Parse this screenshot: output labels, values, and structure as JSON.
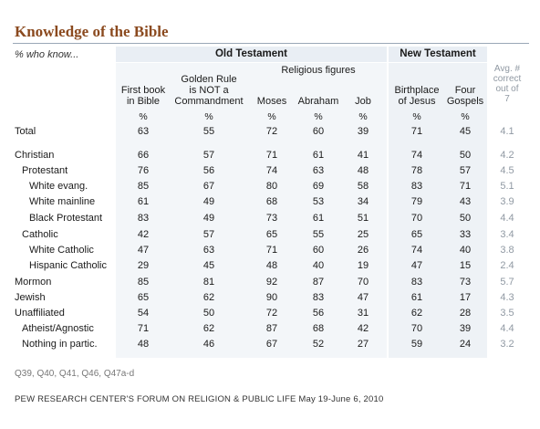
{
  "title": "Knowledge of the Bible",
  "subtitle": "% who know...",
  "groups": {
    "old_testament": "Old Testament",
    "new_testament": "New Testament",
    "religious_figures": "Religious figures"
  },
  "chart_data": {
    "type": "table",
    "columns": [
      {
        "key": "first_book",
        "label_lines": [
          "First book",
          "in Bible"
        ],
        "unit": "%"
      },
      {
        "key": "golden_rule",
        "label_lines": [
          "Golden Rule",
          "is NOT a",
          "Commandment"
        ],
        "unit": "%"
      },
      {
        "key": "moses",
        "label_lines": [
          "Moses"
        ],
        "unit": "%"
      },
      {
        "key": "abraham",
        "label_lines": [
          "Abraham"
        ],
        "unit": "%"
      },
      {
        "key": "job",
        "label_lines": [
          "Job"
        ],
        "unit": "%"
      },
      {
        "key": "birthplace",
        "label_lines": [
          "Birthplace",
          "of Jesus"
        ],
        "unit": "%"
      },
      {
        "key": "gospels",
        "label_lines": [
          "Four",
          "Gospels"
        ],
        "unit": "%"
      },
      {
        "key": "avg",
        "label_lines": [
          "Avg. #",
          "correct",
          "out of",
          "7"
        ],
        "unit": ""
      }
    ],
    "rows": [
      {
        "label": "Total",
        "indent": 0,
        "values": [
          "63",
          "55",
          "72",
          "60",
          "39",
          "71",
          "45",
          "4.1"
        ]
      },
      {
        "label": "Christian",
        "indent": 0,
        "values": [
          "66",
          "57",
          "71",
          "61",
          "41",
          "74",
          "50",
          "4.2"
        ]
      },
      {
        "label": "Protestant",
        "indent": 1,
        "values": [
          "76",
          "56",
          "74",
          "63",
          "48",
          "78",
          "57",
          "4.5"
        ]
      },
      {
        "label": "White evang.",
        "indent": 2,
        "values": [
          "85",
          "67",
          "80",
          "69",
          "58",
          "83",
          "71",
          "5.1"
        ]
      },
      {
        "label": "White mainline",
        "indent": 2,
        "values": [
          "61",
          "49",
          "68",
          "53",
          "34",
          "79",
          "43",
          "3.9"
        ]
      },
      {
        "label": "Black Protestant",
        "indent": 2,
        "values": [
          "83",
          "49",
          "73",
          "61",
          "51",
          "70",
          "50",
          "4.4"
        ]
      },
      {
        "label": "Catholic",
        "indent": 1,
        "values": [
          "42",
          "57",
          "65",
          "55",
          "25",
          "65",
          "33",
          "3.4"
        ]
      },
      {
        "label": "White Catholic",
        "indent": 2,
        "values": [
          "47",
          "63",
          "71",
          "60",
          "26",
          "74",
          "40",
          "3.8"
        ]
      },
      {
        "label": "Hispanic Catholic",
        "indent": 2,
        "values": [
          "29",
          "45",
          "48",
          "40",
          "19",
          "47",
          "15",
          "2.4"
        ]
      },
      {
        "label": "Mormon",
        "indent": 0,
        "values": [
          "85",
          "81",
          "92",
          "87",
          "70",
          "83",
          "73",
          "5.7"
        ]
      },
      {
        "label": "Jewish",
        "indent": 0,
        "values": [
          "65",
          "62",
          "90",
          "83",
          "47",
          "61",
          "17",
          "4.3"
        ]
      },
      {
        "label": "Unaffiliated",
        "indent": 0,
        "values": [
          "54",
          "50",
          "72",
          "56",
          "31",
          "62",
          "28",
          "3.5"
        ]
      },
      {
        "label": "Atheist/Agnostic",
        "indent": 1,
        "values": [
          "71",
          "62",
          "87",
          "68",
          "42",
          "70",
          "39",
          "4.4"
        ]
      },
      {
        "label": "Nothing in partic.",
        "indent": 1,
        "values": [
          "48",
          "46",
          "67",
          "52",
          "27",
          "59",
          "24",
          "3.2"
        ]
      }
    ]
  },
  "notes": "Q39, Q40, Q41, Q46, Q47a-d",
  "source": "PEW RESEARCH CENTER'S FORUM ON RELIGION & PUBLIC LIFE May 19-June 6, 2010"
}
